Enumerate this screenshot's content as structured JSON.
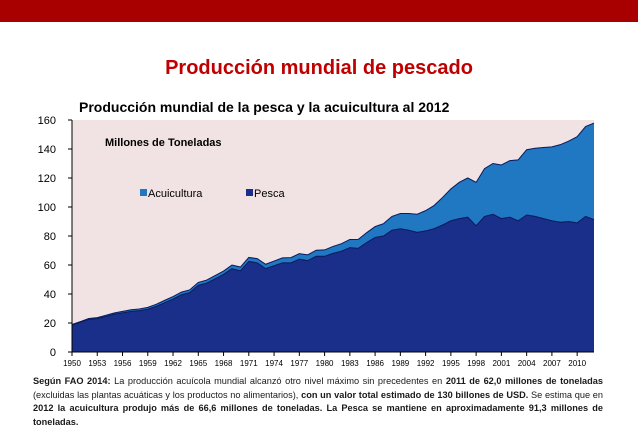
{
  "colors": {
    "top_bar": "#a80000",
    "title": "#c00000",
    "plot_bg": "#f1e3e3",
    "acuicultura": "#1f78c1",
    "pesca": "#1a2f8a",
    "line": "#0b1a5c"
  },
  "slide": {
    "title": "Producción mundial de pescado"
  },
  "chart_data": {
    "type": "area",
    "stacked": true,
    "title": "Producción mundial de la pesca y la acuicultura al 2012",
    "subtitle": "Millones de Toneladas",
    "xlabel": "",
    "ylabel": "",
    "ylim": [
      0,
      160
    ],
    "yticks": [
      0,
      20,
      40,
      60,
      80,
      100,
      120,
      140,
      160
    ],
    "xlim": [
      1950,
      2012
    ],
    "xticks": [
      1950,
      1953,
      1956,
      1959,
      1962,
      1965,
      1968,
      1971,
      1974,
      1977,
      1980,
      1983,
      1986,
      1989,
      1992,
      1995,
      1998,
      2001,
      2004,
      2007,
      2010
    ],
    "grid": false,
    "legend_position": "inside-top-left",
    "x": [
      1950,
      1951,
      1952,
      1953,
      1954,
      1955,
      1956,
      1957,
      1958,
      1959,
      1960,
      1961,
      1962,
      1963,
      1964,
      1965,
      1966,
      1967,
      1968,
      1969,
      1970,
      1971,
      1972,
      1973,
      1974,
      1975,
      1976,
      1977,
      1978,
      1979,
      1980,
      1981,
      1982,
      1983,
      1984,
      1985,
      1986,
      1987,
      1988,
      1989,
      1990,
      1991,
      1992,
      1993,
      1994,
      1995,
      1996,
      1997,
      1998,
      1999,
      2000,
      2001,
      2002,
      2003,
      2004,
      2005,
      2006,
      2007,
      2008,
      2009,
      2010,
      2011,
      2012
    ],
    "series": [
      {
        "name": "Pesca",
        "values": [
          18.5,
          20.5,
          22.5,
          23,
          24.5,
          26,
          27,
          28,
          28.5,
          29.5,
          31.5,
          34,
          36.5,
          39.5,
          41,
          46,
          47.5,
          50.5,
          53.5,
          57.5,
          56,
          62.5,
          61.5,
          57.5,
          59.5,
          61.5,
          61.5,
          64,
          63,
          66,
          66,
          68,
          69.5,
          72,
          71.5,
          75.5,
          79,
          80,
          84,
          85,
          84,
          82.5,
          83.5,
          85,
          87.5,
          90.5,
          92,
          93,
          87,
          93.5,
          95,
          92,
          93,
          90.5,
          94.5,
          93.5,
          92,
          90.5,
          89.5,
          90,
          89,
          93.5,
          91.3
        ]
      },
      {
        "name": "Acuicultura",
        "values": [
          0.5,
          0.5,
          0.6,
          0.7,
          0.8,
          0.9,
          1,
          1.1,
          1.2,
          1.3,
          1.4,
          1.6,
          1.7,
          1.8,
          1.9,
          2,
          2.1,
          2.2,
          2.3,
          2.5,
          2.6,
          2.7,
          2.9,
          3,
          3.2,
          3.4,
          3.6,
          3.8,
          4,
          4.2,
          4.4,
          4.8,
          5.2,
          5.6,
          6.2,
          6.8,
          7.5,
          8.5,
          9.5,
          10.5,
          11.5,
          12.5,
          14,
          16,
          19,
          22,
          25,
          27,
          30,
          33,
          35,
          37,
          39,
          42,
          45,
          47,
          49,
          51,
          53.5,
          55.5,
          59.5,
          62,
          66.6
        ]
      }
    ]
  },
  "footnote": {
    "lead": "Según FAO 2014:",
    "text1": " La producción acuícola mundial alcanzó otro nivel máximo sin precedentes en ",
    "bold1": "2011 de 62,0 millones de toneladas",
    "text2": " (excluidas las plantas acuáticas y los productos no alimentarios), ",
    "bold2": "con un valor total estimado de 130 billones de USD.",
    "text3": " Se estima que en ",
    "bold3": "2012 la acuicultura produjo más de 66,6 millones de toneladas. La Pesca se mantiene en aproximadamente 91,3 millones de toneladas."
  }
}
